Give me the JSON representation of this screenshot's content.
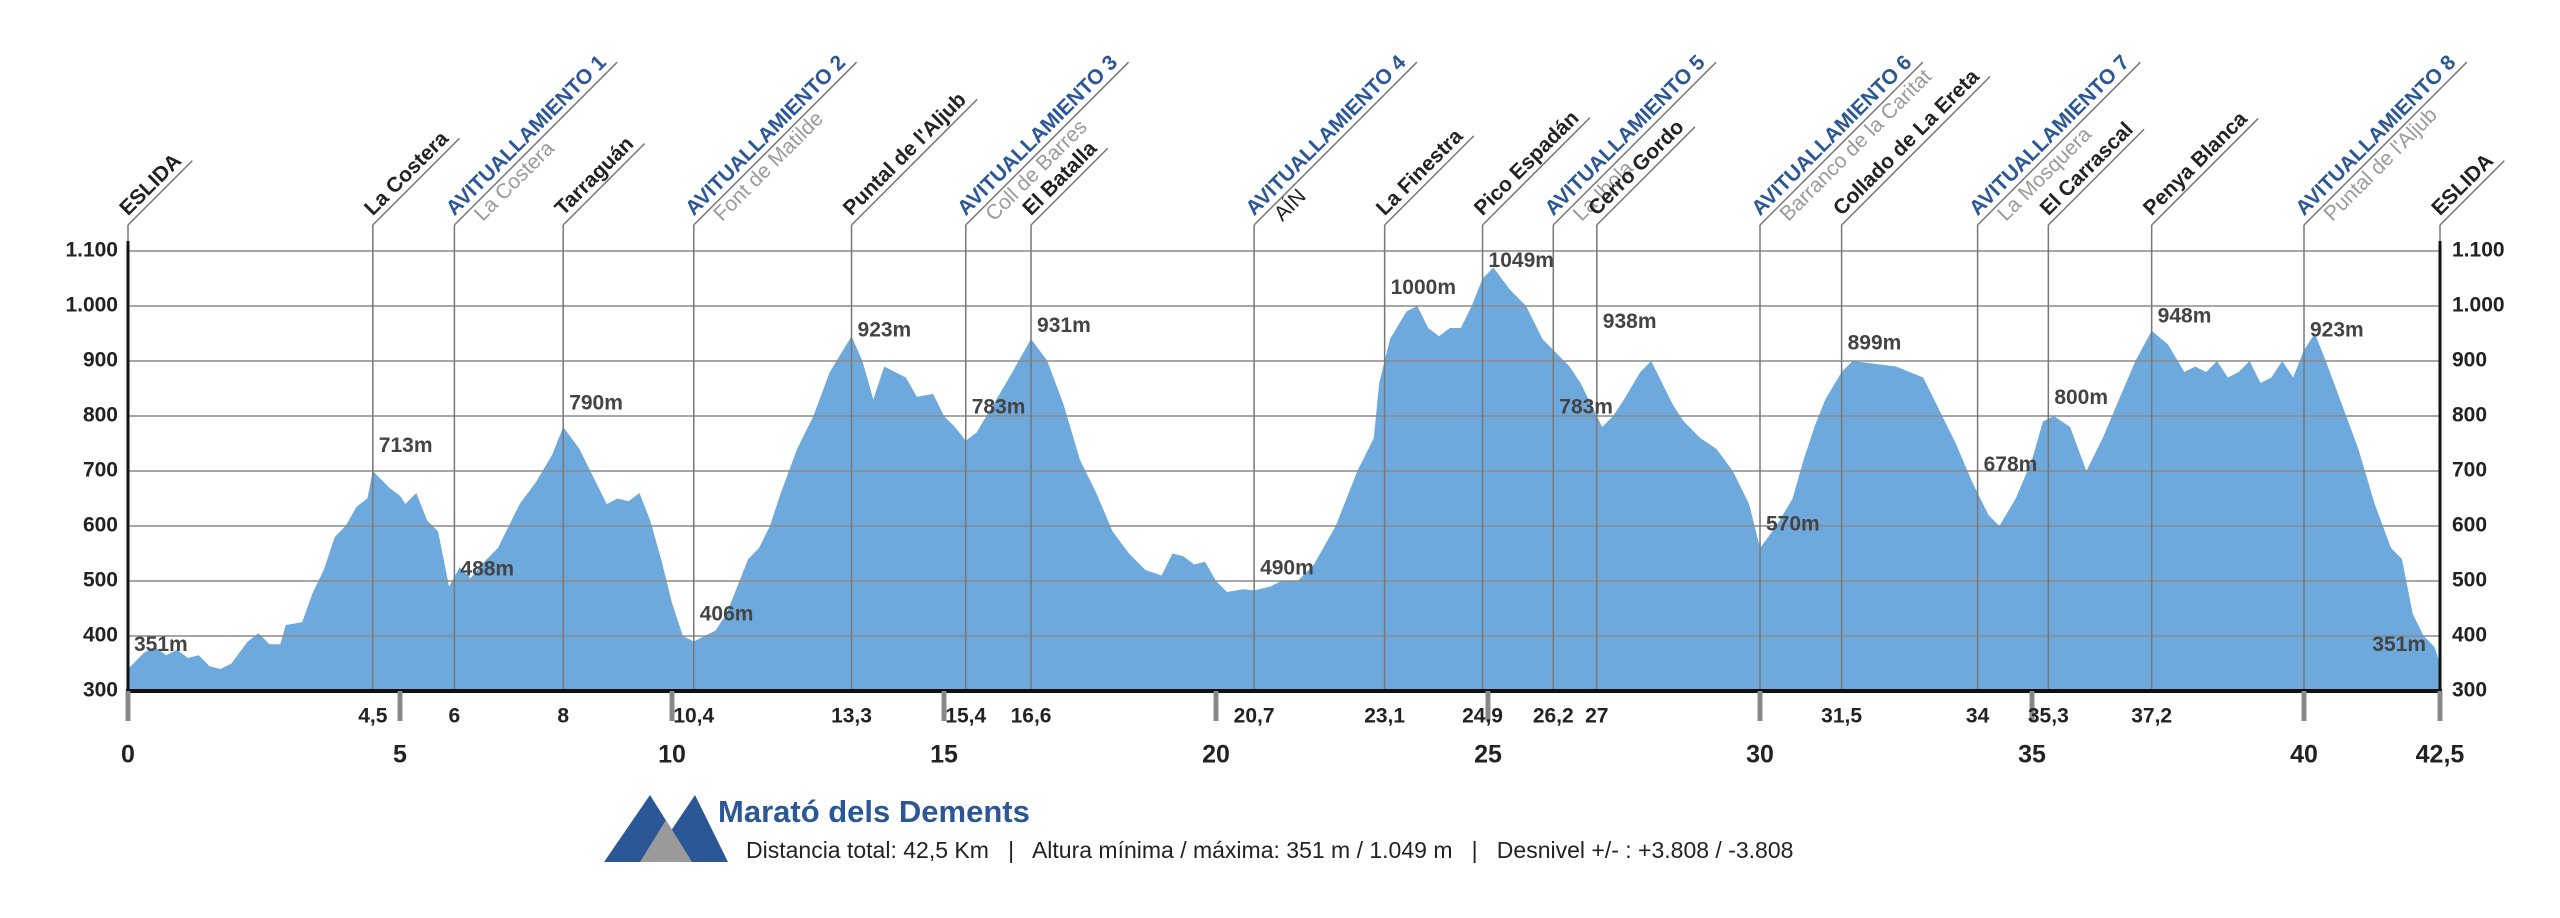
{
  "chart_data": {
    "type": "area",
    "color": "#6ea9dd",
    "x": [
      0,
      0.3,
      0.5,
      0.7,
      0.9,
      1.1,
      1.3,
      1.5,
      1.7,
      1.9,
      2.2,
      2.4,
      2.6,
      2.8,
      2.9,
      3.2,
      3.4,
      3.6,
      3.8,
      4.0,
      4.2,
      4.4,
      4.5,
      4.8,
      5.0,
      5.1,
      5.3,
      5.5,
      5.7,
      5.9,
      6.1,
      6.3,
      6.5,
      6.8,
      7.0,
      7.2,
      7.5,
      7.8,
      8.0,
      8.3,
      8.6,
      8.8,
      9.0,
      9.2,
      9.4,
      9.6,
      9.8,
      10.0,
      10.2,
      10.4,
      10.8,
      11.0,
      11.2,
      11.4,
      11.6,
      11.8,
      12.0,
      12.3,
      12.6,
      12.9,
      13.3,
      13.5,
      13.7,
      13.9,
      14.1,
      14.3,
      14.5,
      14.8,
      15.0,
      15.2,
      15.4,
      15.6,
      15.9,
      16.2,
      16.6,
      16.9,
      17.2,
      17.5,
      17.8,
      18.1,
      18.4,
      18.7,
      19.0,
      19.2,
      19.4,
      19.6,
      19.8,
      20.0,
      20.2,
      20.5,
      20.7,
      21.0,
      21.2,
      21.5,
      21.8,
      22.2,
      22.6,
      22.9,
      23.0,
      23.2,
      23.5,
      23.7,
      23.9,
      24.1,
      24.3,
      24.5,
      24.7,
      24.9,
      25.1,
      25.4,
      25.7,
      25.9,
      26.0,
      26.2,
      26.5,
      26.7,
      26.9,
      27.1,
      27.3,
      27.5,
      27.8,
      28.0,
      28.2,
      28.4,
      28.6,
      28.9,
      29.2,
      29.5,
      29.8,
      30.0,
      30.3,
      30.6,
      30.8,
      31.0,
      31.2,
      31.5,
      31.7,
      32.5,
      33.0,
      33.3,
      33.6,
      33.9,
      34.2,
      34.4,
      34.7,
      35.0,
      35.2,
      35.4,
      35.7,
      36.0,
      36.3,
      36.6,
      36.9,
      37.2,
      37.5,
      37.8,
      38.0,
      38.2,
      38.4,
      38.6,
      38.8,
      39.0,
      39.2,
      39.4,
      39.6,
      39.8,
      40.0,
      40.2,
      40.4,
      40.7,
      41.0,
      41.3,
      41.6,
      41.8,
      42.0,
      42.2,
      42.4,
      42.5
    ],
    "values": [
      340,
      370,
      380,
      365,
      375,
      360,
      365,
      345,
      340,
      350,
      390,
      405,
      385,
      385,
      420,
      425,
      480,
      520,
      580,
      600,
      635,
      650,
      700,
      670,
      655,
      640,
      660,
      610,
      590,
      490,
      525,
      505,
      530,
      560,
      600,
      640,
      680,
      730,
      780,
      740,
      680,
      640,
      650,
      645,
      660,
      610,
      540,
      460,
      400,
      390,
      410,
      440,
      490,
      540,
      560,
      600,
      660,
      740,
      800,
      880,
      945,
      900,
      830,
      890,
      880,
      870,
      835,
      840,
      800,
      780,
      755,
      770,
      820,
      870,
      940,
      900,
      820,
      720,
      660,
      590,
      550,
      520,
      510,
      550,
      545,
      530,
      535,
      500,
      480,
      485,
      483,
      490,
      500,
      500,
      530,
      600,
      700,
      760,
      860,
      940,
      990,
      1000,
      960,
      945,
      960,
      960,
      1000,
      1050,
      1070,
      1030,
      1000,
      960,
      940,
      920,
      890,
      860,
      820,
      780,
      800,
      830,
      880,
      900,
      860,
      820,
      790,
      760,
      740,
      700,
      640,
      560,
      600,
      650,
      720,
      780,
      830,
      880,
      900,
      890,
      870,
      810,
      750,
      680,
      620,
      600,
      650,
      720,
      790,
      800,
      780,
      700,
      760,
      830,
      900,
      955,
      930,
      880,
      890,
      880,
      900,
      870,
      880,
      900,
      860,
      870,
      900,
      870,
      920,
      950,
      900,
      820,
      740,
      640,
      560,
      540,
      440,
      400,
      380,
      350
    ],
    "xlim": [
      0,
      42.5
    ],
    "ylim": [
      300,
      1100
    ],
    "yticks": [
      300,
      400,
      500,
      600,
      700,
      800,
      900,
      {
        "value": 1000,
        "label": "1.000"
      },
      {
        "value": 1100,
        "label": "1.100"
      }
    ],
    "xticks": [
      0,
      5,
      10,
      15,
      20,
      25,
      30,
      35,
      40,
      {
        "value": 42.5,
        "label": "42,5"
      }
    ],
    "minor_xticks": [
      {
        "value": 4.5,
        "label": "4,5"
      },
      6,
      8,
      {
        "value": 10.4,
        "label": "10,4"
      },
      {
        "value": 13.3,
        "label": "13,3"
      },
      {
        "value": 15.4,
        "label": "15,4"
      },
      {
        "value": 16.6,
        "label": "16,6"
      },
      {
        "value": 20.7,
        "label": "20,7"
      },
      {
        "value": 23.1,
        "label": "23,1"
      },
      {
        "value": 24.9,
        "label": "24,9"
      },
      {
        "value": 26.2,
        "label": "26,2"
      },
      27,
      {
        "value": 31.5,
        "label": "31,5"
      },
      34,
      {
        "value": 35.3,
        "label": "35,3"
      },
      {
        "value": 37.2,
        "label": "37,2"
      }
    ],
    "grid": true,
    "waypoints": [
      {
        "x": 0,
        "name": "ESLIDA",
        "color": "#222"
      },
      {
        "x": 4.5,
        "name": "La Costera",
        "color": "#222"
      },
      {
        "x": 6,
        "name": "AVITUALLAMIENTO 1",
        "subtitle": "La Costera",
        "color": "#2b5797",
        "subtitle_color": "#9a9a9a"
      },
      {
        "x": 8,
        "name": "Tarraguán",
        "color": "#222"
      },
      {
        "x": 10.4,
        "name": "AVITUALLAMIENTO 2",
        "subtitle": "Font de Matilde",
        "color": "#2b5797",
        "subtitle_color": "#9a9a9a"
      },
      {
        "x": 13.3,
        "name": "Puntal de l'Aljub",
        "color": "#222"
      },
      {
        "x": 15.4,
        "name": "AVITUALLAMIENTO 3",
        "subtitle": "Coll de Barres",
        "color": "#2b5797",
        "subtitle_color": "#9a9a9a"
      },
      {
        "x": 16.6,
        "name": "El Batalla",
        "color": "#222"
      },
      {
        "x": 20.7,
        "name": "AVITUALLAMIENTO 4",
        "subtitle": "AÍN",
        "color": "#2b5797",
        "subtitle_color": "#222"
      },
      {
        "x": 23.1,
        "name": "La Finestra",
        "color": "#222"
      },
      {
        "x": 24.9,
        "name": "Pico Espadán",
        "color": "#222"
      },
      {
        "x": 26.2,
        "name": "AVITUALLAMIENTO 5",
        "subtitle": "La Ibola",
        "color": "#2b5797",
        "subtitle_color": "#9a9a9a"
      },
      {
        "x": 27,
        "name": "Cerro Gordo",
        "color": "#222"
      },
      {
        "x": 30,
        "name": "AVITUALLAMIENTO 6",
        "subtitle": "Barranco de la Caritat",
        "color": "#2b5797",
        "subtitle_color": "#9a9a9a"
      },
      {
        "x": 31.5,
        "name": "Collado de La Ereta",
        "color": "#222"
      },
      {
        "x": 34,
        "name": "AVITUALLAMIENTO 7",
        "subtitle": "La Mosquera",
        "color": "#2b5797",
        "subtitle_color": "#9a9a9a"
      },
      {
        "x": 35.3,
        "name": "El Carrascal",
        "color": "#222"
      },
      {
        "x": 37.2,
        "name": "Penya Blanca",
        "color": "#222"
      },
      {
        "x": 40,
        "name": "AVITUALLAMIENTO 8",
        "subtitle": "Puntal de l'Aljub",
        "color": "#2b5797",
        "subtitle_color": "#9a9a9a"
      },
      {
        "x": 42.5,
        "name": "ESLIDA",
        "color": "#222"
      }
    ],
    "peaks": [
      {
        "x": 0,
        "value": 351,
        "label": "351m"
      },
      {
        "x": 4.5,
        "value": 713,
        "label": "713m"
      },
      {
        "x": 6,
        "value": 488,
        "label": "488m"
      },
      {
        "x": 8,
        "value": 790,
        "label": "790m"
      },
      {
        "x": 10.4,
        "value": 406,
        "label": "406m"
      },
      {
        "x": 13.3,
        "value": 923,
        "label": "923m"
      },
      {
        "x": 15.4,
        "value": 783,
        "label": "783m"
      },
      {
        "x": 16.6,
        "value": 931,
        "label": "931m"
      },
      {
        "x": 20.7,
        "value": 490,
        "label": "490m"
      },
      {
        "x": 23.1,
        "value": 1000,
        "label": "1000m"
      },
      {
        "x": 24.9,
        "value": 1049,
        "label": "1049m"
      },
      {
        "x": 26.2,
        "value": 783,
        "label": "783m"
      },
      {
        "x": 27,
        "value": 938,
        "label": "938m"
      },
      {
        "x": 30,
        "value": 570,
        "label": "570m"
      },
      {
        "x": 31.5,
        "value": 899,
        "label": "899m"
      },
      {
        "x": 34,
        "value": 678,
        "label": "678m"
      },
      {
        "x": 35.3,
        "value": 800,
        "label": "800m"
      },
      {
        "x": 37.2,
        "value": 948,
        "label": "948m"
      },
      {
        "x": 40,
        "value": 923,
        "label": "923m"
      },
      {
        "x": 42.5,
        "value": 351,
        "label": "351m"
      }
    ],
    "title": "Marató dels Dements",
    "info": "Distancia total: 42,5 Km   |   Altura mínima / máxima: 351 m / 1.049 m   |   Desnivel +/- : +3.808 / -3.808"
  }
}
